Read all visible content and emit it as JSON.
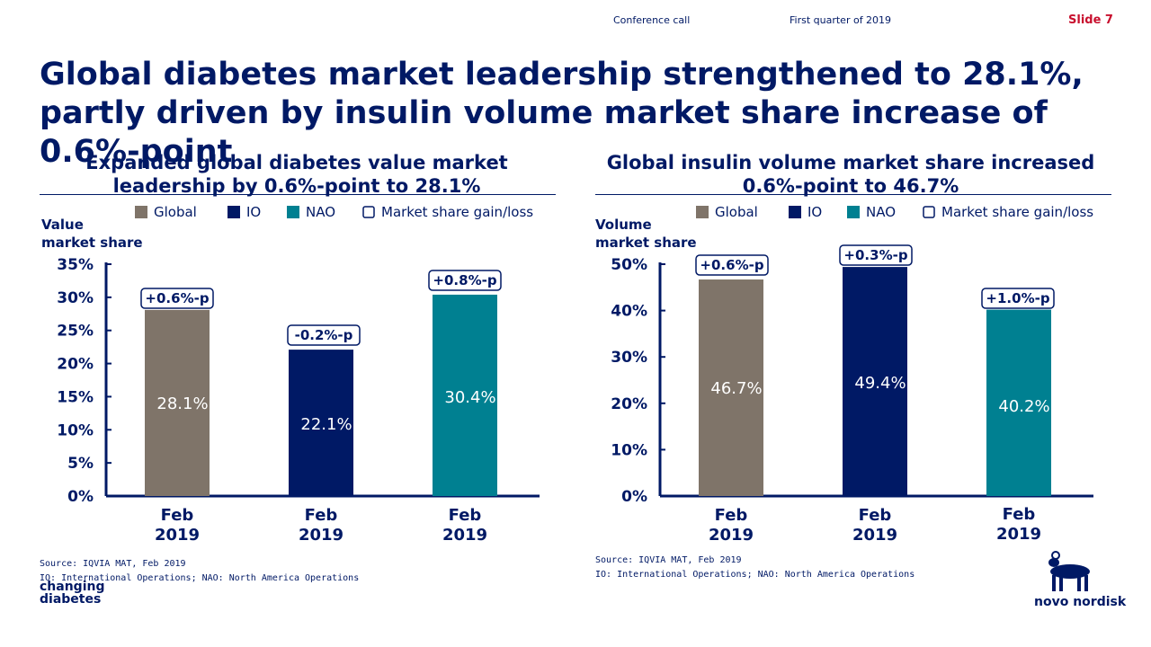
{
  "header": {
    "event": "Conference call",
    "period": "First quarter of 2019",
    "slide": "Slide 7"
  },
  "title": "Global diabetes market leadership strengthened to 28.1%, partly driven by insulin volume market share increase of 0.6%-point",
  "colors": {
    "global": "#7f7469",
    "io": "#001965",
    "nao": "#008091",
    "text": "#001965",
    "accent": "#c8102e"
  },
  "left_chart": {
    "title_line1": "Expanded global diabetes value market",
    "title_line2": "leadership by 0.6%-point to 28.1%"
  },
  "right_chart": {
    "title_line1": "Global insulin volume market share increased",
    "title_line2": "0.6%-point to 46.7%"
  },
  "chart_data": [
    {
      "type": "bar",
      "title": "Expanded global diabetes value market leadership by 0.6%-point to 28.1%",
      "ylabel": "Value market share",
      "ylabel_lines": [
        "Value",
        "market share"
      ],
      "legend": [
        "Global",
        "IO",
        "NAO",
        "Market share gain/loss"
      ],
      "legend_position": "top",
      "categories": [
        [
          "Feb",
          "2019"
        ],
        [
          "Feb",
          "2019"
        ],
        [
          "Feb",
          "2019"
        ]
      ],
      "series_names": [
        "Global",
        "IO",
        "NAO"
      ],
      "series_keys": [
        "global",
        "io",
        "nao"
      ],
      "values": [
        28.1,
        22.1,
        30.4
      ],
      "value_labels": [
        "28.1%",
        "22.1%",
        "30.4%"
      ],
      "changes": [
        "+0.6%-p",
        "-0.2%-p",
        "+0.8%-p"
      ],
      "ylim": [
        0,
        35
      ],
      "yticks": [
        0,
        5,
        10,
        15,
        20,
        25,
        30,
        35
      ],
      "ytick_labels": [
        "0%",
        "5%",
        "10%",
        "15%",
        "20%",
        "25%",
        "30%",
        "35%"
      ]
    },
    {
      "type": "bar",
      "title": "Global insulin volume market share increased 0.6%-point to 46.7%",
      "ylabel": "Volume market share",
      "ylabel_lines": [
        "Volume",
        "market share"
      ],
      "legend": [
        "Global",
        "IO",
        "NAO",
        "Market share gain/loss"
      ],
      "legend_position": "top",
      "categories": [
        [
          "Feb",
          "2019"
        ],
        [
          "Feb",
          "2019"
        ],
        [
          "Feb",
          "2019"
        ]
      ],
      "series_names": [
        "Global",
        "IO",
        "NAO"
      ],
      "series_keys": [
        "global",
        "io",
        "nao"
      ],
      "values": [
        46.7,
        49.4,
        40.2
      ],
      "value_labels": [
        "46.7%",
        "49.4%",
        "40.2%"
      ],
      "changes": [
        "+0.6%-p",
        "+0.3%-p",
        "+1.0%-p"
      ],
      "ylim": [
        0,
        50
      ],
      "yticks": [
        0,
        10,
        20,
        30,
        40,
        50
      ],
      "ytick_labels": [
        "0%",
        "10%",
        "20%",
        "30%",
        "40%",
        "50%"
      ]
    }
  ],
  "sources": {
    "left": [
      "Source: IQVIA MAT, Feb 2019",
      "IO: International Operations; NAO: North America Operations"
    ],
    "right": [
      "Source: IQVIA MAT, Feb 2019",
      "IO: International Operations; NAO: North America Operations"
    ]
  },
  "logos": {
    "changing_diabetes": [
      "changing",
      "diabetes"
    ],
    "novo_nordisk": "novo nordisk"
  }
}
